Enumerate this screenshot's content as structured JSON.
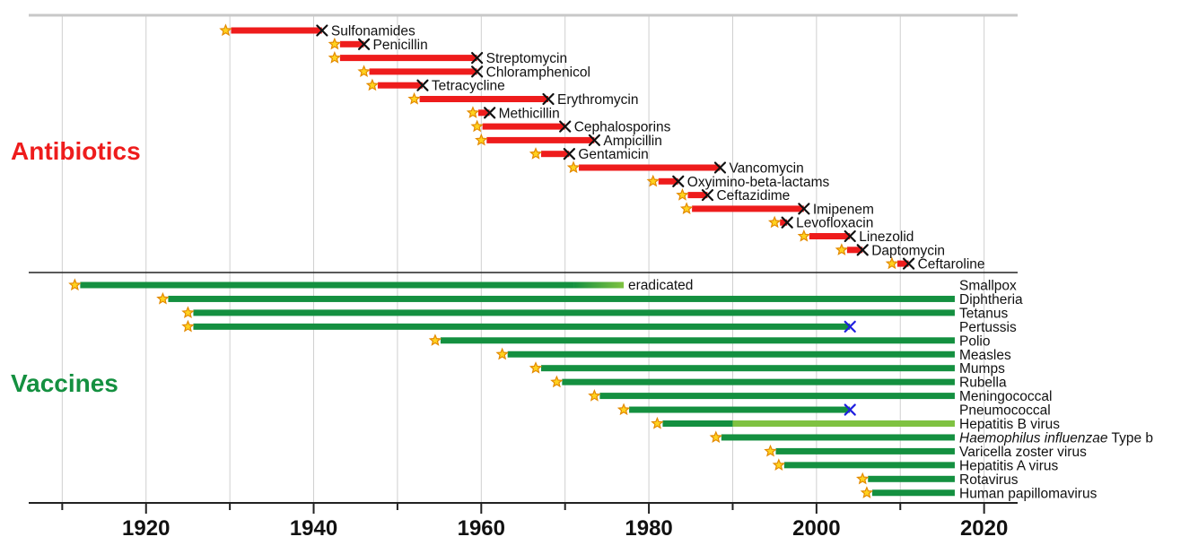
{
  "chart_data": {
    "type": "timeline",
    "xlim": [
      1906,
      2024
    ],
    "xticks": [
      1920,
      1940,
      1960,
      1980,
      2000,
      2020
    ],
    "colors": {
      "antibiotic": "#ee1c1c",
      "vaccine": "#149040",
      "vaccine_light": "#7fc241",
      "resistance_mark": "#111111",
      "vaccine_mark": "#1f1fe0",
      "star_fill": "#ffd21f",
      "star_stroke": "#e38a00"
    },
    "sections": {
      "antibiotics_label": "Antibiotics",
      "vaccines_label": "Vaccines",
      "eradicated_label": "eradicated"
    },
    "antibiotics": [
      {
        "name": "Sulfonamides",
        "start": 1929.5,
        "end": 1941
      },
      {
        "name": "Penicillin",
        "start": 1942.5,
        "end": 1946
      },
      {
        "name": "Streptomycin",
        "start": 1942.5,
        "end": 1959.5
      },
      {
        "name": "Chloramphenicol",
        "start": 1946,
        "end": 1959.5
      },
      {
        "name": "Tetracycline",
        "start": 1947,
        "end": 1953
      },
      {
        "name": "Erythromycin",
        "start": 1952,
        "end": 1968
      },
      {
        "name": "Methicillin",
        "start": 1959,
        "end": 1961
      },
      {
        "name": "Cephalosporins",
        "start": 1959.5,
        "end": 1970
      },
      {
        "name": "Ampicillin",
        "start": 1960,
        "end": 1973.5
      },
      {
        "name": "Gentamicin",
        "start": 1966.5,
        "end": 1970.5
      },
      {
        "name": "Vancomycin",
        "start": 1971,
        "end": 1988.5
      },
      {
        "name": "Oxyimino-beta-lactams",
        "start": 1980.5,
        "end": 1983.5
      },
      {
        "name": "Ceftazidime",
        "start": 1984,
        "end": 1987
      },
      {
        "name": "Imipenem",
        "start": 1984.5,
        "end": 1998.5
      },
      {
        "name": "Levofloxacin",
        "start": 1995,
        "end": 1996.5
      },
      {
        "name": "Linezolid",
        "start": 1998.5,
        "end": 2004
      },
      {
        "name": "Daptomycin",
        "start": 2003,
        "end": 2005.5
      },
      {
        "name": "Ceftaroline",
        "start": 2009,
        "end": 2011
      }
    ],
    "vaccines": [
      {
        "name": "Smallpox",
        "start": 1911.5,
        "end": 1977,
        "eradicated": true,
        "fade_from": 1971
      },
      {
        "name": "Diphtheria",
        "start": 1922,
        "end": 2016.5
      },
      {
        "name": "Tetanus",
        "start": 1925,
        "end": 2016.5
      },
      {
        "name": "Pertussis",
        "start": 1925,
        "end": 2004,
        "mark": 2004
      },
      {
        "name": "Polio",
        "start": 1954.5,
        "end": 2016.5
      },
      {
        "name": "Measles",
        "start": 1962.5,
        "end": 2016.5
      },
      {
        "name": "Mumps",
        "start": 1966.5,
        "end": 2016.5
      },
      {
        "name": "Rubella",
        "start": 1969,
        "end": 2016.5
      },
      {
        "name": "Meningococcal",
        "start": 1973.5,
        "end": 2016.5
      },
      {
        "name": "Pneumococcal",
        "start": 1977,
        "end": 2004,
        "mark": 2004
      },
      {
        "name": "Hepatitis B virus",
        "start": 1981,
        "end": 2016.5,
        "light_from": 1990
      },
      {
        "name": "Haemophilus influenzae",
        "suffix": " Type b",
        "italic": true,
        "start": 1988,
        "end": 2016.5
      },
      {
        "name": "Varicella zoster virus",
        "start": 1994.5,
        "end": 2016.5
      },
      {
        "name": "Hepatitis A virus",
        "start": 1995.5,
        "end": 2016.5
      },
      {
        "name": "Rotavirus",
        "start": 2005.5,
        "end": 2016.5
      },
      {
        "name": "Human papillomavirus",
        "start": 2006,
        "end": 2016.5
      }
    ]
  }
}
